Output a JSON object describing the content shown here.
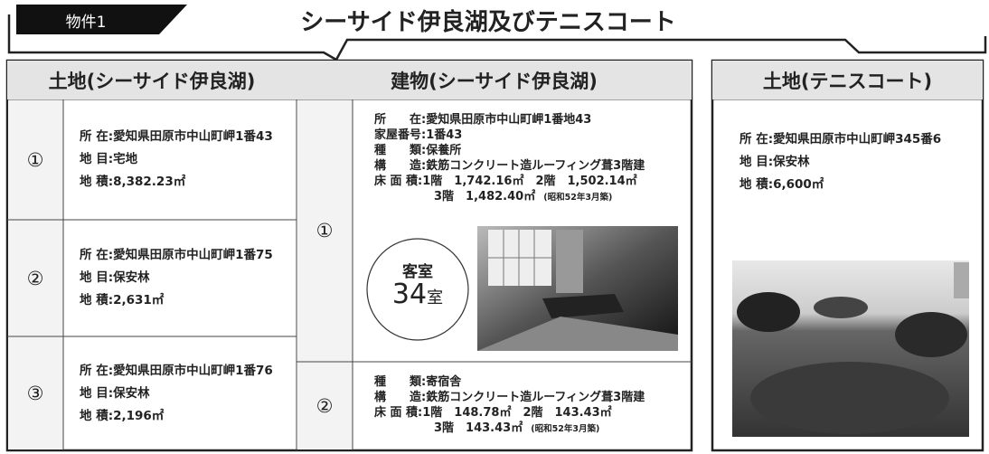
{
  "header": {
    "tag": "物件1",
    "title": "シーサイド伊良湖及びテニスコート"
  },
  "land_seaside": {
    "heading": "土地(シーサイド伊良湖)",
    "rows": [
      {
        "number": "①",
        "lines": [
          "所 在:愛知県田原市中山町岬1番43",
          "地 目:宅地",
          "地 積:8,382.23㎡"
        ]
      },
      {
        "number": "②",
        "lines": [
          "所 在:愛知県田原市中山町岬1番75",
          "地 目:保安林",
          "地 積:2,631㎡"
        ]
      },
      {
        "number": "③",
        "lines": [
          "所 在:愛知県田原市中山町岬1番76",
          "地 目:保安林",
          "地 積:2,196㎡"
        ]
      }
    ]
  },
  "building": {
    "heading": "建物(シーサイド伊良湖)",
    "rows": [
      {
        "number": "①",
        "lines": [
          "所　　在:愛知県田原市中山町岬1番地43",
          "家屋番号:1番43",
          "種　　類:保養所",
          "構　　造:鉄筋コンクリート造ルーフィング葺3階建",
          "床 面 積:1階　1,742.16㎡　2階　1,502.14㎡",
          "3階　1,482.40㎡"
        ],
        "note": "(昭和52年3月築)",
        "room_label": "客室",
        "room_count": "34",
        "room_unit": "室"
      },
      {
        "number": "②",
        "lines": [
          "種　　類:寄宿舎",
          "構　　造:鉄筋コンクリート造ルーフィング葺3階建",
          "床 面 積:1階　148.78㎡　2階　143.43㎡",
          "3階　143.43㎡"
        ],
        "note": "(昭和52年3月築)"
      }
    ]
  },
  "land_tennis": {
    "heading": "土地(テニスコート)",
    "lines": [
      "所 在:愛知県田原市中山町岬345番6",
      "地 目:保安林",
      "地 積:6,600㎡"
    ]
  }
}
